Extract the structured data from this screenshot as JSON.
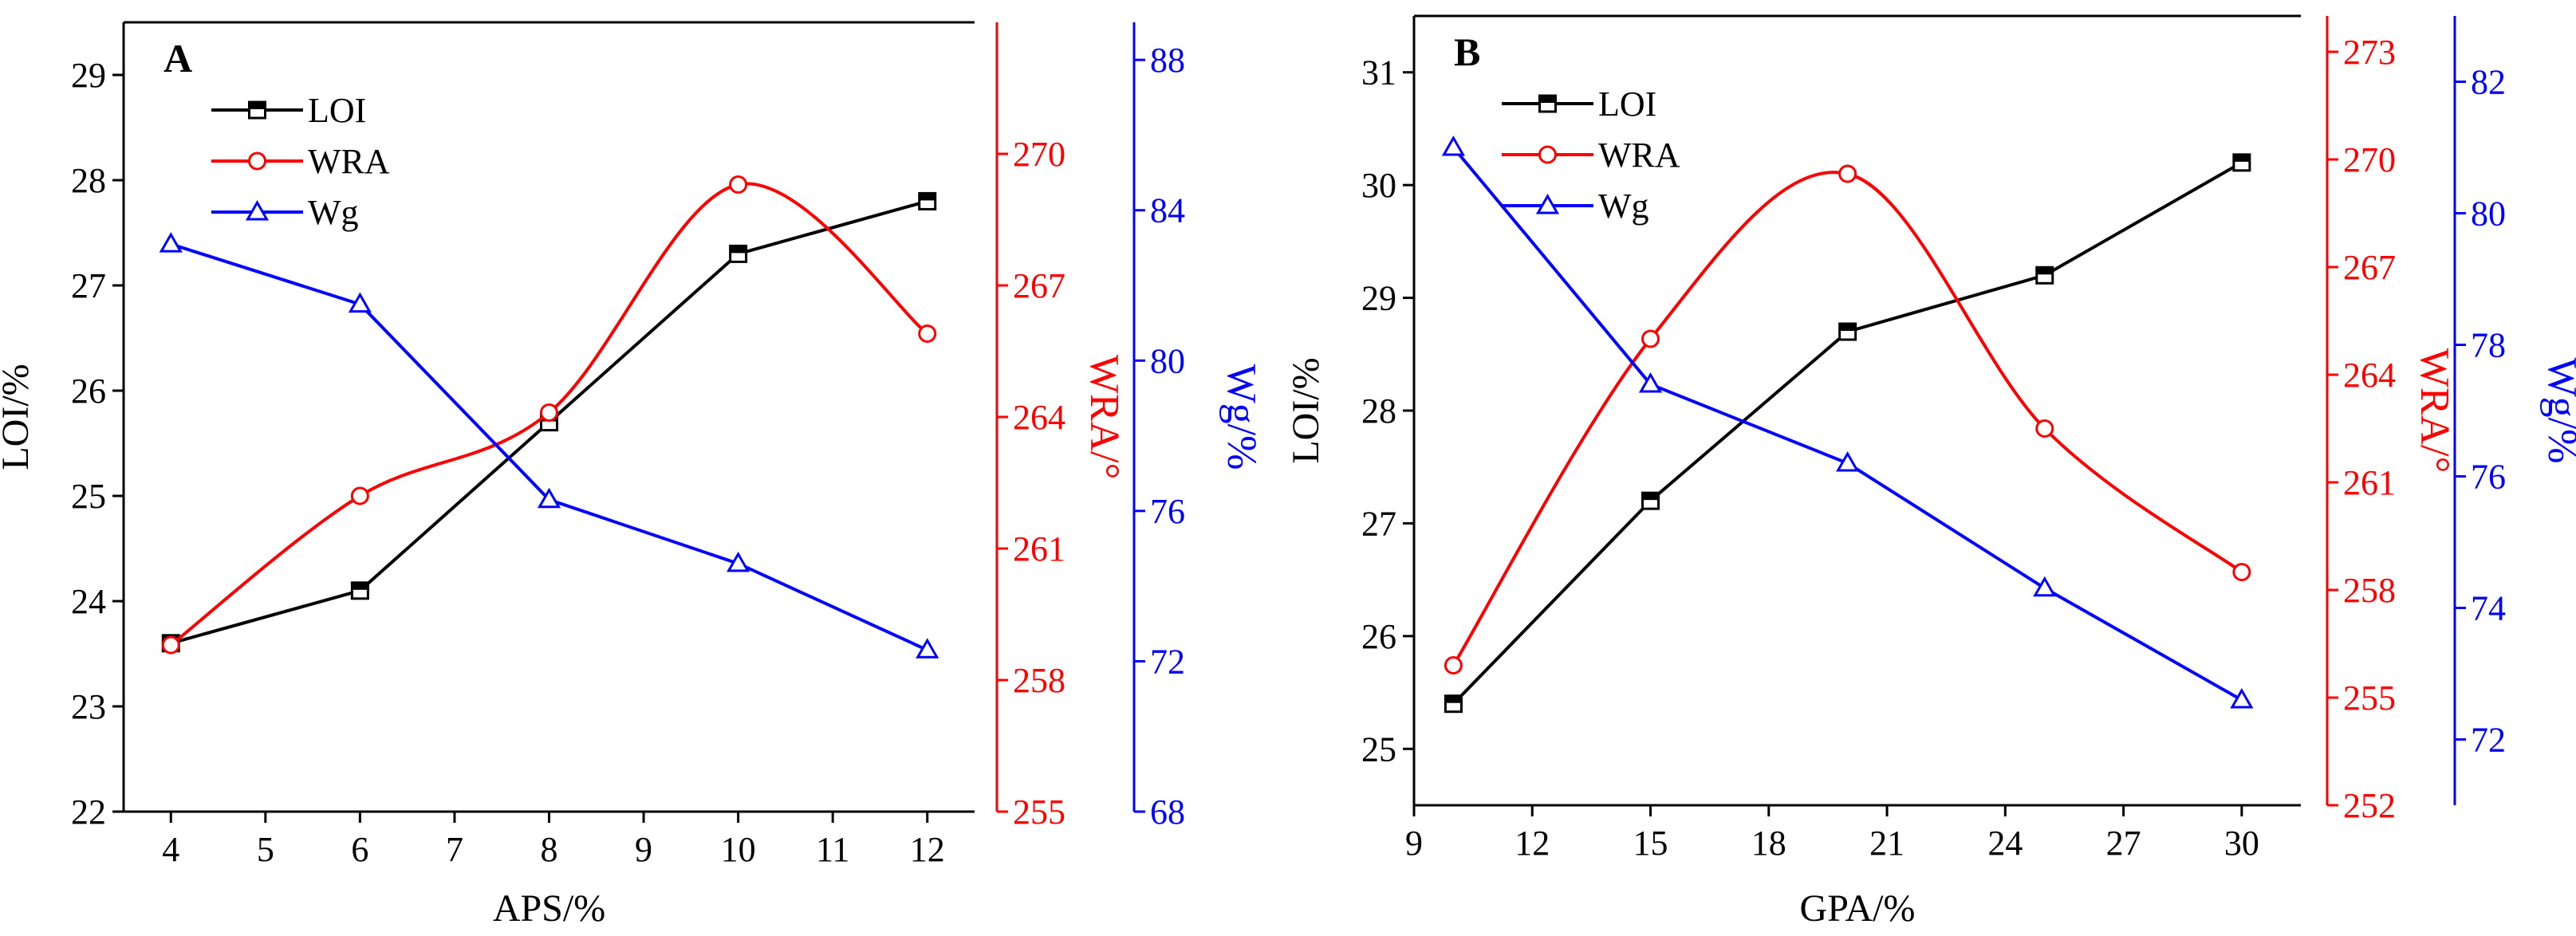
{
  "colors": {
    "loi": "#000000",
    "wra": "#ff0000",
    "wg": "#0000ff",
    "axis": "#000000"
  },
  "chart_data": [
    {
      "type": "line",
      "panel_label": "A",
      "xlabel": "APS/%",
      "x_ticks": [
        "4",
        "5",
        "6",
        "7",
        "8",
        "9",
        "10",
        "11",
        "12"
      ],
      "xlim": [
        3.5,
        12.5
      ],
      "x": [
        4,
        6,
        8,
        10,
        12
      ],
      "left_axis": {
        "label": "LOI/%",
        "ylim": [
          22,
          29.5
        ],
        "ticks": [
          "22",
          "23",
          "24",
          "25",
          "26",
          "27",
          "28",
          "29"
        ]
      },
      "right_axis_1": {
        "label": "WRA/°",
        "ylim": [
          255,
          273
        ],
        "ticks": [
          "255",
          "258",
          "261",
          "264",
          "267",
          "270"
        ]
      },
      "right_axis_2": {
        "label": "Wg/%",
        "ylim": [
          68,
          89
        ],
        "ticks": [
          "68",
          "72",
          "76",
          "80",
          "84",
          "88"
        ]
      },
      "series": [
        {
          "name": "LOI",
          "axis": "left",
          "marker": "square",
          "smooth": false,
          "values": [
            23.6,
            24.1,
            25.7,
            27.3,
            27.8
          ]
        },
        {
          "name": "WRA",
          "axis": "right1",
          "marker": "circle",
          "smooth": true,
          "values": [
            258.8,
            262.2,
            264.1,
            269.3,
            265.9
          ]
        },
        {
          "name": "Wg",
          "axis": "right2",
          "marker": "triangle",
          "smooth": false,
          "values": [
            83.1,
            81.5,
            76.3,
            74.6,
            72.3
          ]
        }
      ],
      "legend": [
        "LOI",
        "WRA",
        "Wg"
      ],
      "legend_position": "top-left"
    },
    {
      "type": "line",
      "panel_label": "B",
      "xlabel": "GPA/%",
      "x_ticks": [
        "9",
        "12",
        "15",
        "18",
        "21",
        "24",
        "27",
        "30"
      ],
      "xlim": [
        9,
        31.5
      ],
      "x": [
        10,
        15,
        20,
        25,
        30
      ],
      "left_axis": {
        "label": "LOI/%",
        "ylim": [
          24.5,
          31.5
        ],
        "ticks": [
          "25",
          "26",
          "27",
          "28",
          "29",
          "30",
          "31"
        ]
      },
      "right_axis_1": {
        "label": "WRA/°",
        "ylim": [
          252,
          274
        ],
        "ticks": [
          "252",
          "255",
          "258",
          "261",
          "264",
          "267",
          "270",
          "273"
        ]
      },
      "right_axis_2": {
        "label": "Wg/%",
        "ylim": [
          71,
          83
        ],
        "ticks": [
          "72",
          "74",
          "76",
          "78",
          "80",
          "82"
        ]
      },
      "series": [
        {
          "name": "LOI",
          "axis": "left",
          "marker": "square",
          "smooth": false,
          "values": [
            25.4,
            27.2,
            28.7,
            29.2,
            30.2
          ]
        },
        {
          "name": "WRA",
          "axis": "right1",
          "marker": "circle",
          "smooth": true,
          "values": [
            255.9,
            265.0,
            269.6,
            262.5,
            258.5
          ]
        },
        {
          "name": "Wg",
          "axis": "right2",
          "marker": "triangle",
          "smooth": false,
          "values": [
            81.0,
            77.4,
            76.2,
            74.3,
            72.6
          ]
        }
      ],
      "legend": [
        "LOI",
        "WRA",
        "Wg"
      ],
      "legend_position": "top-left"
    }
  ]
}
